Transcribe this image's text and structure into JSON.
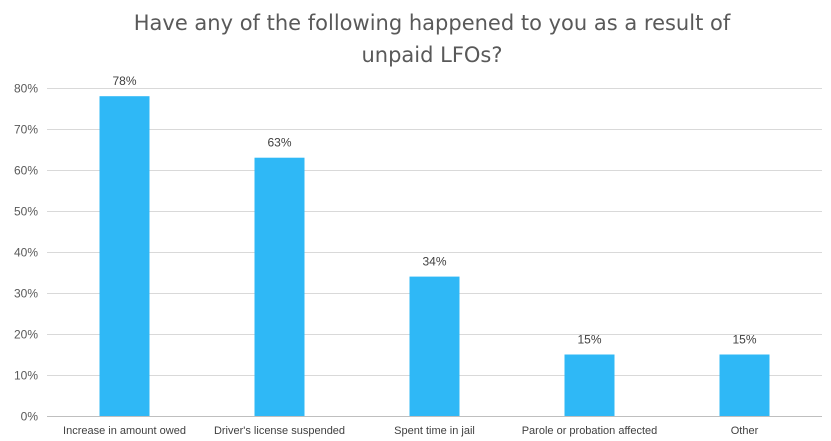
{
  "chart_data": {
    "type": "bar",
    "title_lines": [
      "Have any of the following happened to you as a result of",
      "unpaid LFOs?"
    ],
    "xlabel": "",
    "ylabel": "",
    "categories": [
      "Increase in amount owed",
      "Driver's license suspended",
      "Spent time in jail",
      "Parole or probation affected",
      "Other"
    ],
    "values": [
      78,
      63,
      34,
      15,
      15
    ],
    "data_labels": [
      "78%",
      "63%",
      "34%",
      "15%",
      "15%"
    ],
    "ylim": [
      0,
      80
    ],
    "yticks": [
      0,
      10,
      20,
      30,
      40,
      50,
      60,
      70,
      80
    ],
    "ytick_labels": [
      "0%",
      "10%",
      "20%",
      "30%",
      "40%",
      "50%",
      "60%",
      "70%",
      "80%"
    ],
    "grid": true,
    "legend": "none",
    "bar_color": "#2FB8F6"
  }
}
